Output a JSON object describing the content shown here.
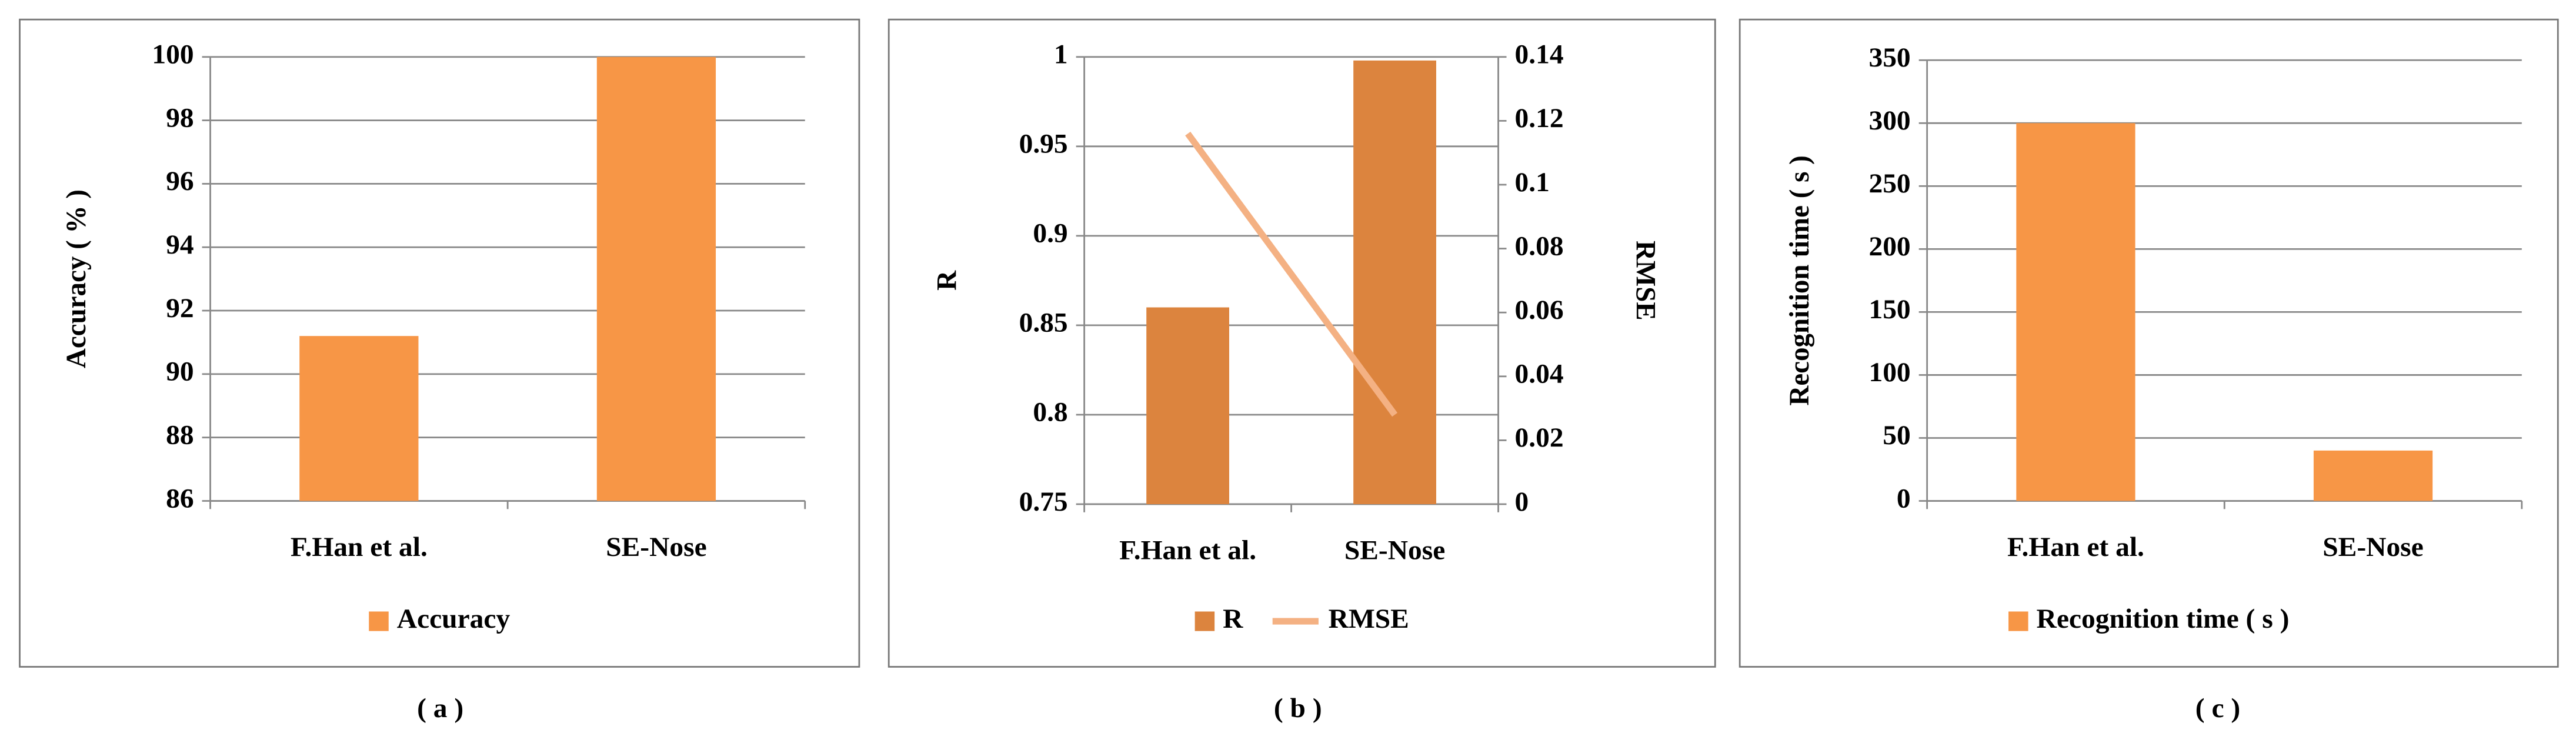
{
  "chart_data": [
    {
      "type": "bar",
      "categories": [
        "F.Han et al.",
        "SE-Nose"
      ],
      "series": [
        {
          "name": "Accuracy",
          "color": "#f79646",
          "values": [
            91.2,
            100
          ]
        }
      ],
      "y_label": "Accuracy ( % )",
      "ylim": [
        86,
        100
      ],
      "yticks": [
        86,
        88,
        90,
        92,
        94,
        96,
        98,
        100
      ],
      "grid": true,
      "legend": "bottom",
      "caption": "( a )"
    },
    {
      "type": "combo",
      "categories": [
        "F.Han et al.",
        "SE-Nose"
      ],
      "series": [
        {
          "name": "R",
          "type": "bar",
          "color": "#dc843e",
          "values": [
            0.86,
            0.998
          ]
        },
        {
          "name": "RMSE",
          "type": "line",
          "axis": "y2",
          "color": "#f4b183",
          "values": [
            0.116,
            0.028
          ]
        }
      ],
      "y_label": "R",
      "y2_label": "RMSE",
      "ylim": [
        0.75,
        1
      ],
      "yticks": [
        0.75,
        0.8,
        0.85,
        0.9,
        0.95,
        1
      ],
      "y2lim": [
        0,
        0.14
      ],
      "y2ticks": [
        0,
        0.02,
        0.04,
        0.06,
        0.08,
        0.1,
        0.12,
        0.14
      ],
      "grid": true,
      "legend": "bottom",
      "caption": "( b )"
    },
    {
      "type": "bar",
      "categories": [
        "F.Han et al.",
        "SE-Nose"
      ],
      "series": [
        {
          "name": "Recognition time ( s )",
          "color": "#f79646",
          "values": [
            300,
            40
          ]
        }
      ],
      "y_label": "Recognition time ( s )",
      "ylim": [
        0,
        350
      ],
      "yticks": [
        0,
        50,
        100,
        150,
        200,
        250,
        300,
        350
      ],
      "grid": true,
      "legend": "bottom",
      "caption": "( c )"
    }
  ]
}
